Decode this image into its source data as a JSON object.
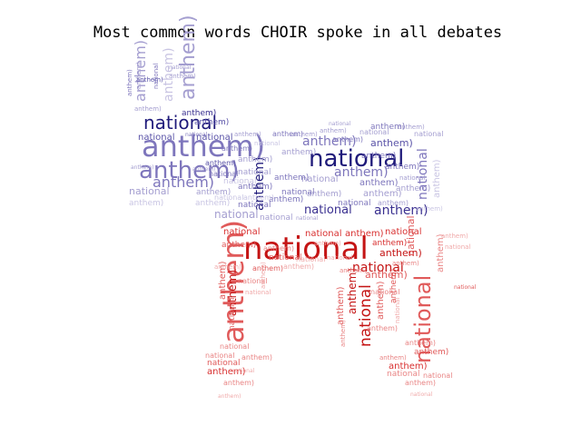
{
  "chart_data": {
    "type": "wordcloud",
    "title": "Most common words CHOIR spoke in all debates",
    "words": [
      "national",
      "anthem)"
    ],
    "palettes": {
      "top": [
        "#1f1a7a",
        "#3a3090",
        "#5b54a8",
        "#7e76bc",
        "#a49ed0",
        "#c9c5e3"
      ],
      "bottom": [
        "#c41414",
        "#d83030",
        "#e05a5a",
        "#e98585",
        "#f0aaaa",
        "#f6cccc"
      ]
    }
  }
}
